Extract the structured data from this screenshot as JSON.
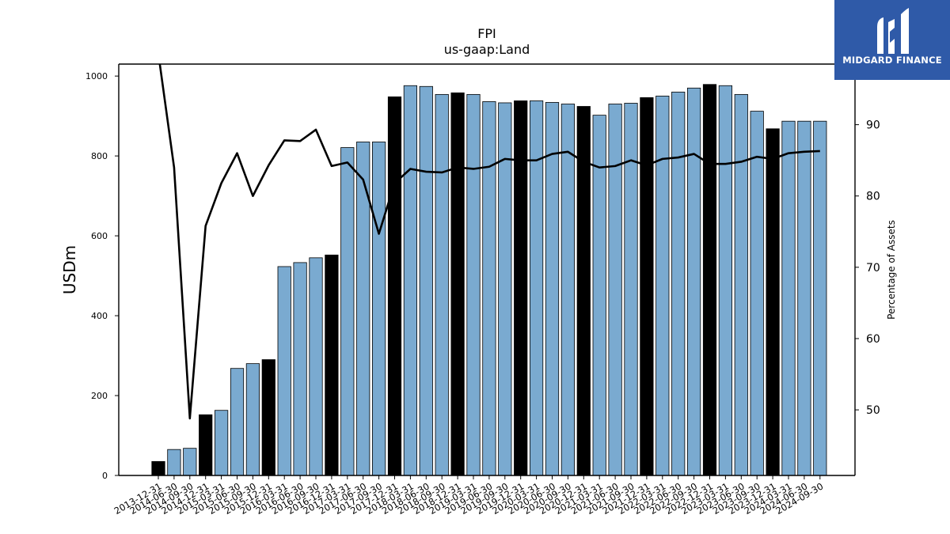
{
  "logo": {
    "text": "MIDGARD FINANCE",
    "icon": "midgard-logo-icon",
    "background": "#2f5aa8"
  },
  "chart_data": {
    "type": "bar",
    "title": "FPI",
    "subtitle": "us-gaap:Land",
    "ylabel": "USDm",
    "y2label": "Percentage of Assets",
    "ylim": [
      0,
      1030
    ],
    "y2lim": [
      40.8,
      98.5
    ],
    "yticks": [
      0,
      200,
      400,
      600,
      800,
      1000
    ],
    "y2ticks": [
      50,
      60,
      70,
      80,
      90
    ],
    "grid": false,
    "colors": {
      "bar_default": "#7aaad0",
      "bar_highlight": "#000000",
      "line": "#000000"
    },
    "categories": [
      "2013-12-31",
      "2014-06-30",
      "2014-09-30",
      "2014-12-31",
      "2015-03-31",
      "2015-06-30",
      "2015-09-30",
      "2015-12-31",
      "2016-03-31",
      "2016-06-30",
      "2016-09-30",
      "2016-12-31",
      "2017-03-31",
      "2017-06-30",
      "2017-09-30",
      "2017-12-31",
      "2018-03-31",
      "2018-06-30",
      "2018-09-30",
      "2018-12-31",
      "2019-03-31",
      "2019-06-30",
      "2019-09-30",
      "2019-12-31",
      "2020-03-31",
      "2020-06-30",
      "2020-09-30",
      "2020-12-31",
      "2021-03-31",
      "2021-06-30",
      "2021-09-30",
      "2021-12-31",
      "2022-03-31",
      "2022-06-30",
      "2022-09-30",
      "2022-12-31",
      "2023-03-31",
      "2023-06-30",
      "2023-09-30",
      "2023-12-31",
      "2024-03-31",
      "2024-06-30",
      "2024-09-30"
    ],
    "series": [
      {
        "kind": "bar",
        "values": [
          35,
          65,
          68,
          152,
          163,
          268,
          280,
          290,
          523,
          533,
          545,
          552,
          821,
          835,
          835,
          948,
          976,
          974,
          954,
          958,
          954,
          936,
          933,
          938,
          938,
          934,
          930,
          924,
          902,
          930,
          932,
          946,
          950,
          960,
          970,
          979,
          976,
          954,
          912,
          868,
          887,
          887,
          887
        ],
        "highlight": [
          true,
          false,
          false,
          true,
          false,
          false,
          false,
          true,
          false,
          false,
          false,
          true,
          false,
          false,
          false,
          true,
          false,
          false,
          false,
          true,
          false,
          false,
          false,
          true,
          false,
          false,
          false,
          true,
          false,
          false,
          false,
          true,
          false,
          false,
          false,
          true,
          false,
          false,
          false,
          true,
          false,
          false,
          false
        ]
      },
      {
        "kind": "line",
        "axis": "right",
        "values": [
          100,
          84,
          48.8,
          75.8,
          81.8,
          86,
          80,
          84.3,
          87.8,
          87.7,
          89.3,
          84.2,
          84.7,
          82.3,
          74.7,
          81.8,
          83.8,
          83.4,
          83.3,
          84,
          83.8,
          84.1,
          85.2,
          85,
          85,
          85.9,
          86.2,
          84.8,
          84,
          84.2,
          85,
          84.3,
          85.2,
          85.4,
          85.9,
          84.5,
          84.5,
          84.8,
          85.5,
          85.2,
          86,
          86.2,
          86.3
        ]
      }
    ]
  }
}
